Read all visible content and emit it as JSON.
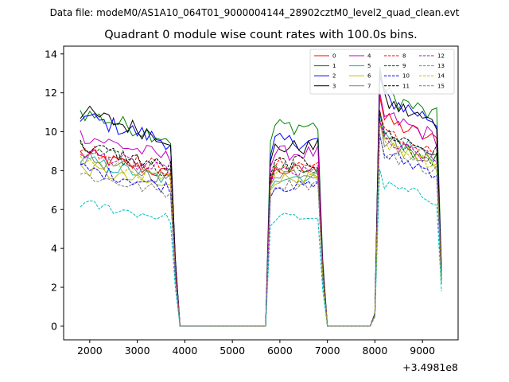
{
  "chart_data": {
    "type": "line",
    "suptitle": "Data file: modeM0/AS1A10_064T01_9000004144_28902cztM0_level2_quad_clean.evt",
    "title": "Quadrant 0 module wise count rates with 100.0s bins.",
    "xlabel": "",
    "ylabel": "",
    "x_offset_label": "+3.4981e8",
    "xlim": [
      1450,
      9750
    ],
    "ylim": [
      -0.7,
      14.4
    ],
    "xticks": [
      2000,
      3000,
      4000,
      5000,
      6000,
      7000,
      8000,
      9000
    ],
    "yticks": [
      0,
      2,
      4,
      6,
      8,
      10,
      12,
      14
    ],
    "x_segments": [
      [
        1800,
        3800
      ],
      [
        3900,
        5700
      ],
      [
        5800,
        6900
      ],
      [
        7000,
        7900
      ],
      [
        8000,
        9400
      ]
    ],
    "series": [
      {
        "name": "0",
        "color": "#ff0000",
        "dash": false,
        "seg_levels": [
          8.3,
          0,
          8.0,
          0,
          10.1
        ]
      },
      {
        "name": "1",
        "color": "#008000",
        "dash": false,
        "seg_levels": [
          10.3,
          0,
          10.3,
          0,
          11.4
        ]
      },
      {
        "name": "2",
        "color": "#0000ff",
        "dash": false,
        "seg_levels": [
          10.1,
          0,
          9.5,
          0,
          11.2
        ]
      },
      {
        "name": "3",
        "color": "#000000",
        "dash": false,
        "seg_levels": [
          10.3,
          0,
          9.2,
          0,
          11.0
        ]
      },
      {
        "name": "4",
        "color": "#bf00bf",
        "dash": false,
        "seg_levels": [
          9.2,
          0,
          8.9,
          0,
          10.3
        ]
      },
      {
        "name": "5",
        "color": "#20b2aa",
        "dash": false,
        "seg_levels": [
          8.0,
          0,
          7.7,
          0,
          9.3
        ]
      },
      {
        "name": "6",
        "color": "#bfbf00",
        "dash": false,
        "seg_levels": [
          7.6,
          0,
          7.6,
          0,
          8.9
        ]
      },
      {
        "name": "7",
        "color": "#808080",
        "dash": false,
        "seg_levels": [
          8.1,
          0,
          7.9,
          0,
          9.1
        ]
      },
      {
        "name": "8",
        "color": "#ff0000",
        "dash": true,
        "seg_levels": [
          8.6,
          0,
          8.3,
          0,
          9.4
        ]
      },
      {
        "name": "9",
        "color": "#006400",
        "dash": true,
        "seg_levels": [
          8.5,
          0,
          8.1,
          0,
          9.1
        ]
      },
      {
        "name": "10",
        "color": "#0000ff",
        "dash": true,
        "seg_levels": [
          7.6,
          0,
          7.2,
          0,
          8.4
        ]
      },
      {
        "name": "11",
        "color": "#000000",
        "dash": true,
        "seg_levels": [
          8.7,
          0,
          8.4,
          0,
          9.5
        ]
      },
      {
        "name": "12",
        "color": "#bf00bf",
        "dash": true,
        "seg_levels": [
          8.4,
          0,
          7.9,
          0,
          9.0
        ]
      },
      {
        "name": "13",
        "color": "#00bfbf",
        "dash": true,
        "seg_levels": [
          5.9,
          0,
          5.6,
          0,
          6.9
        ]
      },
      {
        "name": "14",
        "color": "#bfbf00",
        "dash": true,
        "seg_levels": [
          8.0,
          0,
          7.8,
          0,
          8.9
        ]
      },
      {
        "name": "15",
        "color": "#808080",
        "dash": true,
        "seg_levels": [
          7.3,
          0,
          7.3,
          0,
          8.5
        ]
      }
    ],
    "legend": {
      "position": "top-right",
      "columns": 4
    },
    "grid": false
  }
}
